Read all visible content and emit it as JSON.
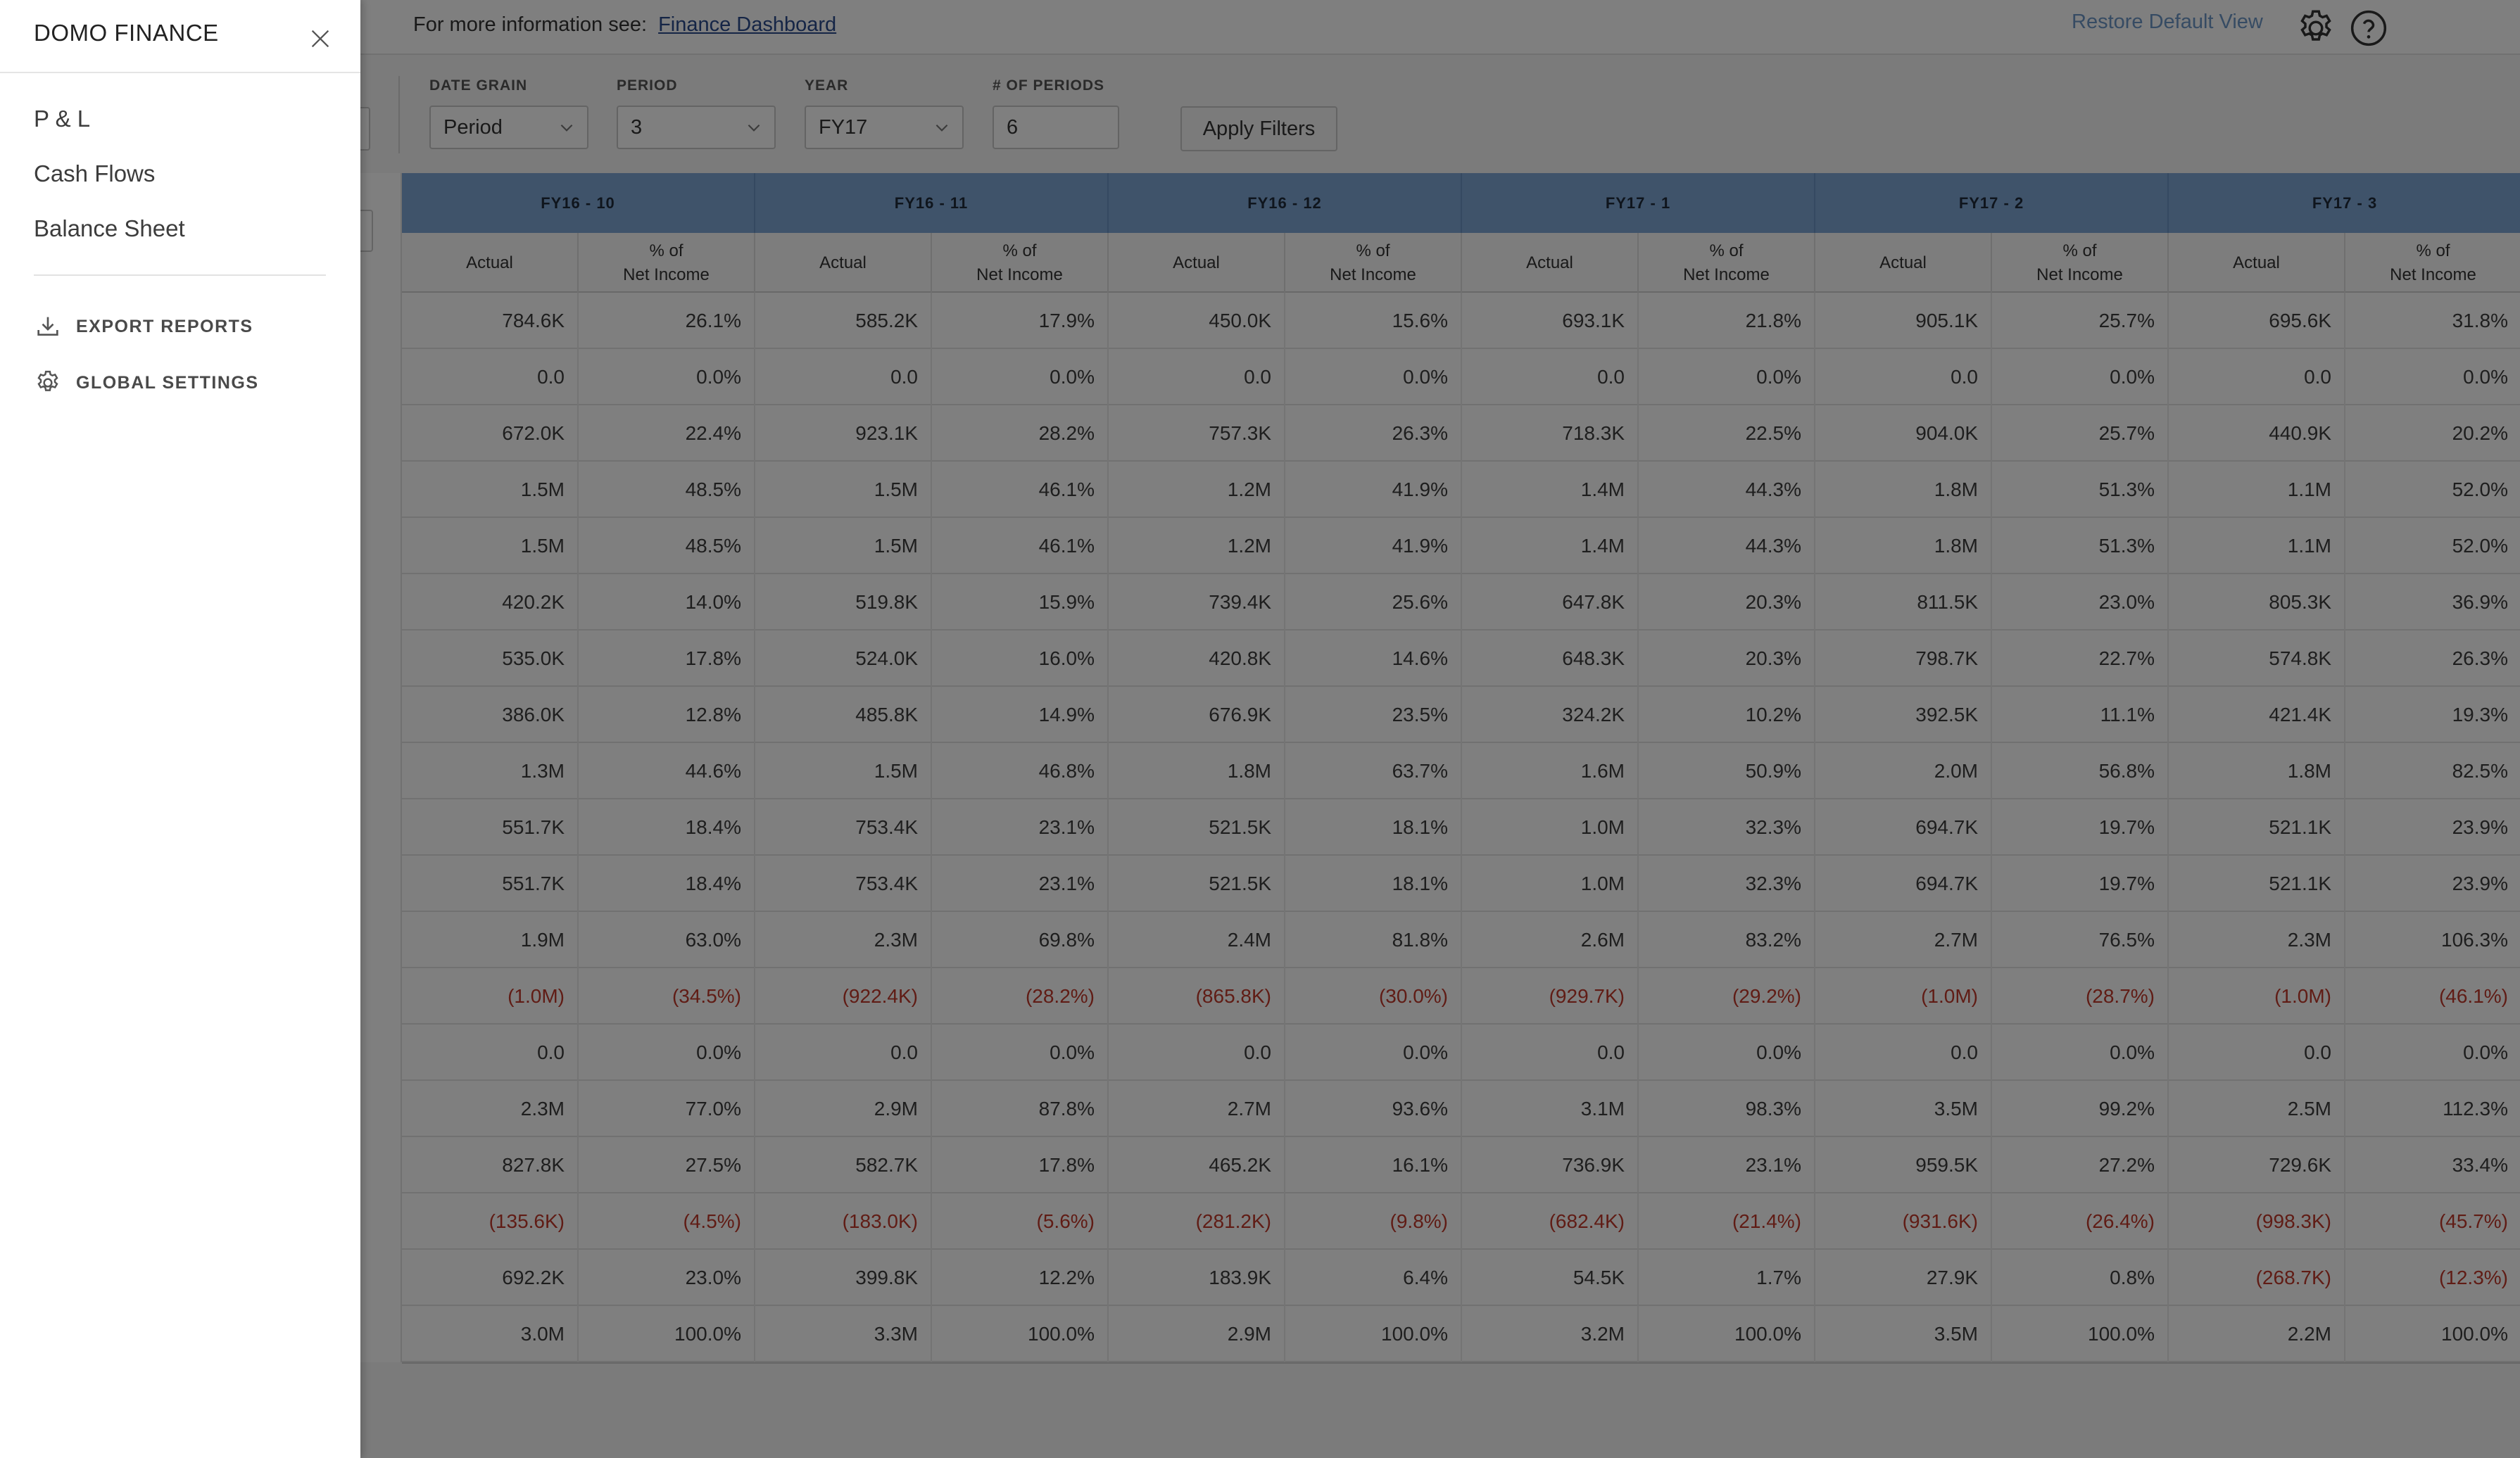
{
  "drawer": {
    "title": "DOMO FINANCE",
    "nav": [
      "P & L",
      "Cash Flows",
      "Balance Sheet"
    ],
    "actions": {
      "export": "EXPORT REPORTS",
      "settings": "GLOBAL SETTINGS"
    }
  },
  "topbar": {
    "info_prefix": "For more information see:",
    "info_link": "Finance Dashboard",
    "restore": "Restore Default View"
  },
  "filters": {
    "date_grain": {
      "label": "DATE GRAIN",
      "value": "Period"
    },
    "period": {
      "label": "PERIOD",
      "value": "3"
    },
    "year": {
      "label": "YEAR",
      "value": "FY17"
    },
    "num_periods": {
      "label": "# OF PERIODS",
      "value": "6"
    },
    "apply": "Apply Filters"
  },
  "table": {
    "periods": [
      "FY16 - 10",
      "FY16 - 11",
      "FY16 - 12",
      "FY17 - 1",
      "FY17 - 2",
      "FY17 - 3"
    ],
    "sub_headers": [
      "Actual",
      "% of\nNet Income"
    ],
    "rows": [
      [
        "784.6K",
        "26.1%",
        "585.2K",
        "17.9%",
        "450.0K",
        "15.6%",
        "693.1K",
        "21.8%",
        "905.1K",
        "25.7%",
        "695.6K",
        "31.8%"
      ],
      [
        "0.0",
        "0.0%",
        "0.0",
        "0.0%",
        "0.0",
        "0.0%",
        "0.0",
        "0.0%",
        "0.0",
        "0.0%",
        "0.0",
        "0.0%"
      ],
      [
        "672.0K",
        "22.4%",
        "923.1K",
        "28.2%",
        "757.3K",
        "26.3%",
        "718.3K",
        "22.5%",
        "904.0K",
        "25.7%",
        "440.9K",
        "20.2%"
      ],
      [
        "1.5M",
        "48.5%",
        "1.5M",
        "46.1%",
        "1.2M",
        "41.9%",
        "1.4M",
        "44.3%",
        "1.8M",
        "51.3%",
        "1.1M",
        "52.0%"
      ],
      [
        "1.5M",
        "48.5%",
        "1.5M",
        "46.1%",
        "1.2M",
        "41.9%",
        "1.4M",
        "44.3%",
        "1.8M",
        "51.3%",
        "1.1M",
        "52.0%"
      ],
      [
        "420.2K",
        "14.0%",
        "519.8K",
        "15.9%",
        "739.4K",
        "25.6%",
        "647.8K",
        "20.3%",
        "811.5K",
        "23.0%",
        "805.3K",
        "36.9%"
      ],
      [
        "535.0K",
        "17.8%",
        "524.0K",
        "16.0%",
        "420.8K",
        "14.6%",
        "648.3K",
        "20.3%",
        "798.7K",
        "22.7%",
        "574.8K",
        "26.3%"
      ],
      [
        "386.0K",
        "12.8%",
        "485.8K",
        "14.9%",
        "676.9K",
        "23.5%",
        "324.2K",
        "10.2%",
        "392.5K",
        "11.1%",
        "421.4K",
        "19.3%"
      ],
      [
        "1.3M",
        "44.6%",
        "1.5M",
        "46.8%",
        "1.8M",
        "63.7%",
        "1.6M",
        "50.9%",
        "2.0M",
        "56.8%",
        "1.8M",
        "82.5%"
      ],
      [
        "551.7K",
        "18.4%",
        "753.4K",
        "23.1%",
        "521.5K",
        "18.1%",
        "1.0M",
        "32.3%",
        "694.7K",
        "19.7%",
        "521.1K",
        "23.9%"
      ],
      [
        "551.7K",
        "18.4%",
        "753.4K",
        "23.1%",
        "521.5K",
        "18.1%",
        "1.0M",
        "32.3%",
        "694.7K",
        "19.7%",
        "521.1K",
        "23.9%"
      ],
      [
        "1.9M",
        "63.0%",
        "2.3M",
        "69.8%",
        "2.4M",
        "81.8%",
        "2.6M",
        "83.2%",
        "2.7M",
        "76.5%",
        "2.3M",
        "106.3%"
      ],
      [
        "(1.0M)",
        "(34.5%)",
        "(922.4K)",
        "(28.2%)",
        "(865.8K)",
        "(30.0%)",
        "(929.7K)",
        "(29.2%)",
        "(1.0M)",
        "(28.7%)",
        "(1.0M)",
        "(46.1%)"
      ],
      [
        "0.0",
        "0.0%",
        "0.0",
        "0.0%",
        "0.0",
        "0.0%",
        "0.0",
        "0.0%",
        "0.0",
        "0.0%",
        "0.0",
        "0.0%"
      ],
      [
        "2.3M",
        "77.0%",
        "2.9M",
        "87.8%",
        "2.7M",
        "93.6%",
        "3.1M",
        "98.3%",
        "3.5M",
        "99.2%",
        "2.5M",
        "112.3%"
      ],
      [
        "827.8K",
        "27.5%",
        "582.7K",
        "17.8%",
        "465.2K",
        "16.1%",
        "736.9K",
        "23.1%",
        "959.5K",
        "27.2%",
        "729.6K",
        "33.4%"
      ],
      [
        "(135.6K)",
        "(4.5%)",
        "(183.0K)",
        "(5.6%)",
        "(281.2K)",
        "(9.8%)",
        "(682.4K)",
        "(21.4%)",
        "(931.6K)",
        "(26.4%)",
        "(998.3K)",
        "(45.7%)"
      ],
      [
        "692.2K",
        "23.0%",
        "399.8K",
        "12.2%",
        "183.9K",
        "6.4%",
        "54.5K",
        "1.7%",
        "27.9K",
        "0.8%",
        "(268.7K)",
        "(12.3%)"
      ],
      [
        "3.0M",
        "100.0%",
        "3.3M",
        "100.0%",
        "2.9M",
        "100.0%",
        "3.2M",
        "100.0%",
        "3.5M",
        "100.0%",
        "2.2M",
        "100.0%"
      ]
    ]
  },
  "colors": {
    "header_blue": "#7ea6d4",
    "negative_red": "#c0392b",
    "link_blue": "#2a4b8d"
  },
  "icons": [
    "close-icon",
    "download-icon",
    "gear-icon",
    "help-icon",
    "chevron-down-icon"
  ]
}
